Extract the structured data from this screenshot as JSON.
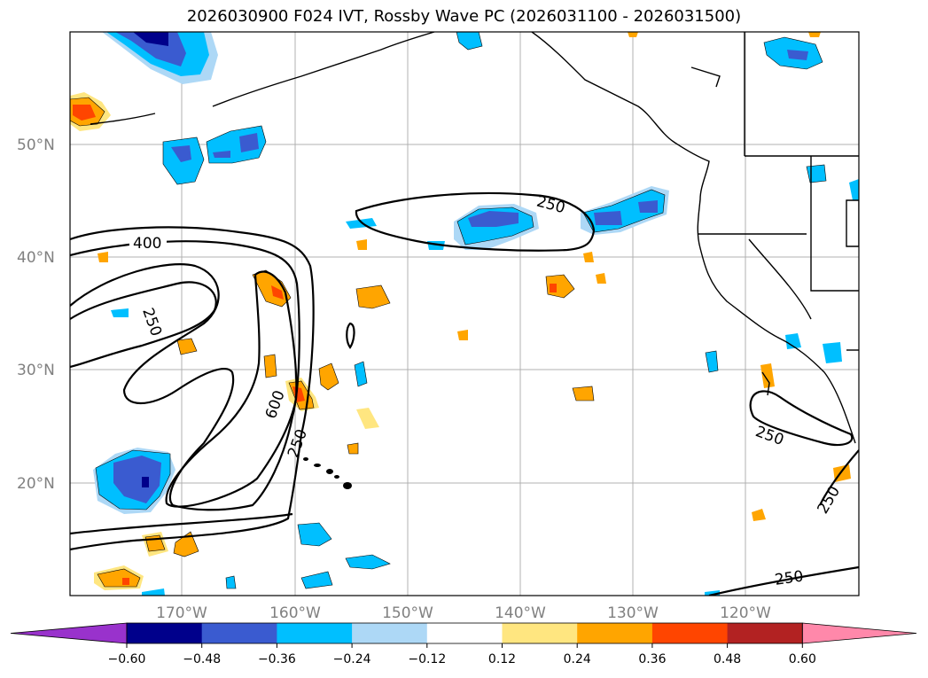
{
  "title": "2026030900 F024 IVT, Rossby Wave PC (2026031100 - 2026031500)",
  "lat_labels": [
    "50°N",
    "40°N",
    "30°N",
    "20°N"
  ],
  "lon_labels": [
    "170°W",
    "160°W",
    "150°W",
    "140°W",
    "130°W",
    "120°W"
  ],
  "contour_labels": [
    "400",
    "250",
    "250",
    "600",
    "250",
    "250",
    "250",
    "250"
  ],
  "colorbar": {
    "ticks": [
      "−0.60",
      "−0.48",
      "−0.36",
      "−0.24",
      "−0.12",
      "0.12",
      "0.24",
      "0.36",
      "0.48",
      "0.60"
    ],
    "colors": [
      "#9932cc",
      "#00008b",
      "#3a5bd0",
      "#00bfff",
      "#add8f6",
      "#ffffff",
      "#ffe680",
      "#ffa500",
      "#ff4500",
      "#b22222",
      "#ff88aa"
    ]
  },
  "colors": {
    "neg_strong": "#00008b",
    "neg_mid": "#3a5bd0",
    "neg": "#00bfff",
    "neg_light": "#add8f6",
    "pos_light": "#ffe680",
    "pos": "#ffa500",
    "pos_strong": "#ff4500"
  }
}
